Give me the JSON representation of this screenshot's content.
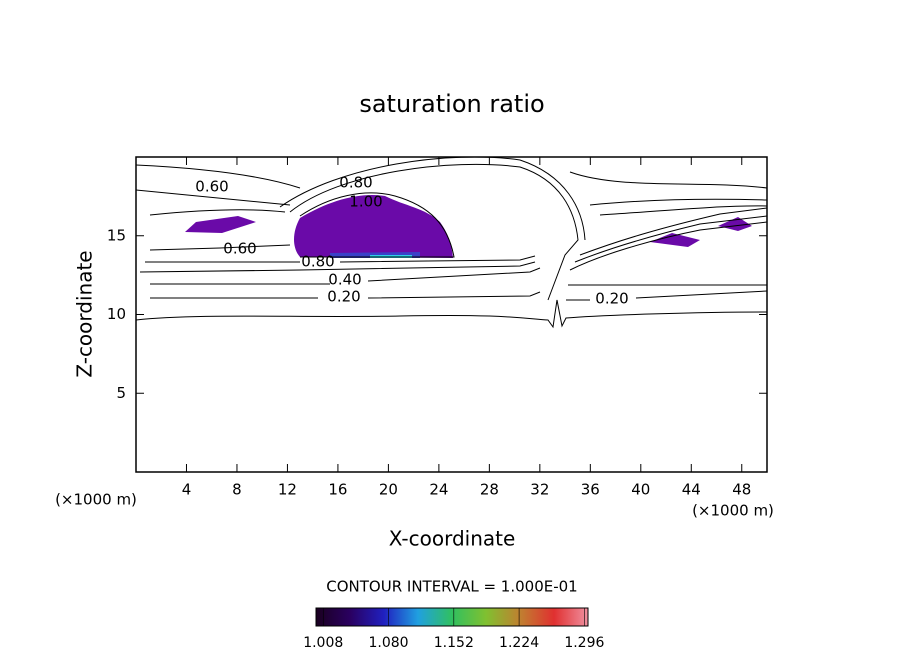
{
  "chart_data": {
    "type": "contour",
    "title": "saturation ratio",
    "x_label": "X-coordinate",
    "y_label": "Z-coordinate",
    "x_unit_label": "(×1000 m)",
    "y_unit_label": "(×1000 m)",
    "xlim": [
      0,
      50
    ],
    "ylim": [
      0,
      20
    ],
    "xticks": [
      4,
      8,
      12,
      16,
      20,
      24,
      28,
      32,
      36,
      40,
      44,
      48
    ],
    "yticks": [
      5,
      10,
      15
    ],
    "contour_labels": [
      {
        "value": 0.6,
        "label": "0.60"
      },
      {
        "value": 0.8,
        "label": "0.80"
      },
      {
        "value": 1.0,
        "label": "1.00"
      },
      {
        "value": 0.6,
        "label": "0.60"
      },
      {
        "value": 0.8,
        "label": "0.80"
      },
      {
        "value": 0.4,
        "label": "0.40"
      },
      {
        "value": 0.2,
        "label": "0.20"
      },
      {
        "value": 0.2,
        "label": "0.20"
      }
    ],
    "contour_interval_text": "CONTOUR INTERVAL = 1.000E-01",
    "colorbar": {
      "clim": [
        1.0,
        1.3
      ],
      "ticks": [
        1.008,
        {
          "value": 1.08,
          "label": "1.080"
        },
        1.152,
        1.224,
        1.296
      ],
      "colormap": [
        "#1a0020",
        "#2a0060",
        "#2020c0",
        "#20a0e0",
        "#30c060",
        "#80c030",
        "#c08030",
        "#e03030",
        "#f090a0"
      ]
    },
    "line_color": "#000000",
    "fill_color": "#6a0aa8"
  }
}
